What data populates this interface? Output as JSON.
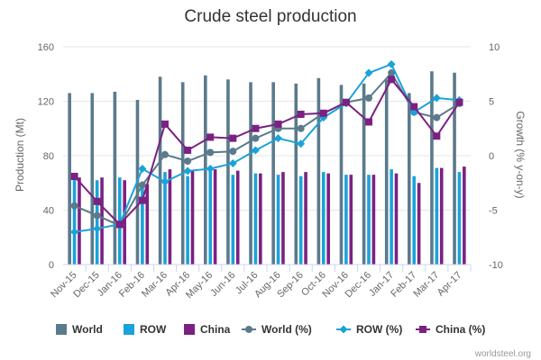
{
  "chart_data": {
    "type": "bar",
    "title": "Crude steel production",
    "credit": "worldsteel.org",
    "categories": [
      "Nov-15",
      "Dec-15",
      "Jan-16",
      "Feb-16",
      "Mar-16",
      "Apr-16",
      "May-16",
      "Jun-16",
      "Jul-16",
      "Aug-16",
      "Sep-16",
      "Oct-16",
      "Nov-16",
      "Dec-16",
      "Jan-17",
      "Feb-17",
      "Mar-17",
      "Apr-17"
    ],
    "ylabel_left": "Production (Mt)",
    "ylabel_right": "Growth (% y-on-y)",
    "ylim_left": [
      0,
      160
    ],
    "ylim_right": [
      -10,
      10
    ],
    "yticks_left": [
      0,
      40,
      80,
      120,
      160
    ],
    "yticks_right": [
      -10,
      -5,
      0,
      5,
      10
    ],
    "grid": true,
    "legend_position": "bottom",
    "bar_series": [
      {
        "name": "World",
        "color": "#5b7a8c",
        "values": [
          126,
          126,
          127,
          121,
          138,
          134,
          139,
          136,
          134,
          134,
          133,
          137,
          132,
          133,
          136,
          126,
          142,
          141
        ]
      },
      {
        "name": "ROW",
        "color": "#1aa3d9",
        "values": [
          64,
          62,
          64,
          61,
          68,
          65,
          69,
          66,
          67,
          66,
          65,
          68,
          66,
          66,
          70,
          65,
          71,
          68
        ]
      },
      {
        "name": "China",
        "color": "#7b2182",
        "values": [
          64,
          64,
          62,
          59,
          70,
          69,
          70,
          69,
          67,
          68,
          68,
          67,
          66,
          66,
          67,
          60,
          71,
          72
        ]
      }
    ],
    "line_series": [
      {
        "name": "World (%)",
        "color": "#5b7a8c",
        "marker": "circle",
        "values": [
          -4.6,
          -5.5,
          -6.4,
          -2.7,
          0.1,
          -0.5,
          0.3,
          0.4,
          1.6,
          2.5,
          2.5,
          3.9,
          4.9,
          5.3,
          7.6,
          4.0,
          3.5,
          4.8
        ]
      },
      {
        "name": "ROW (%)",
        "color": "#1aa3d9",
        "marker": "diamond",
        "values": [
          -7.0,
          -6.7,
          -6.3,
          -1.2,
          -2.4,
          -1.4,
          -1.2,
          -0.7,
          0.5,
          1.6,
          1.1,
          3.5,
          4.8,
          7.6,
          8.4,
          4.0,
          5.3,
          5.1
        ]
      },
      {
        "name": "China (%)",
        "color": "#7b2182",
        "marker": "square",
        "values": [
          -1.9,
          -4.2,
          -6.3,
          -4.1,
          2.9,
          0.5,
          1.7,
          1.6,
          2.5,
          2.9,
          3.8,
          3.9,
          4.9,
          3.1,
          7.0,
          4.5,
          1.8,
          4.9
        ]
      }
    ]
  }
}
